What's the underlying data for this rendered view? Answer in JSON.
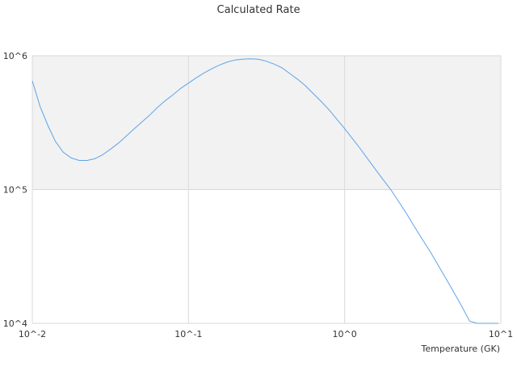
{
  "chart_data": {
    "type": "line",
    "title": "Calculated Rate",
    "xlabel": "Temperature (GK)",
    "ylabel": "",
    "x_scale": "log",
    "y_scale": "log",
    "xlim": [
      0.01,
      10
    ],
    "ylim": [
      10000,
      1000000
    ],
    "x_ticks": [
      {
        "value": 0.01,
        "label": "10^-2"
      },
      {
        "value": 0.1,
        "label": "10^-1"
      },
      {
        "value": 1,
        "label": "10^0"
      },
      {
        "value": 10,
        "label": "10^1"
      }
    ],
    "y_ticks": [
      {
        "value": 10000,
        "label": "10^4"
      },
      {
        "value": 100000,
        "label": "10^5"
      },
      {
        "value": 1000000,
        "label": "10^6"
      }
    ],
    "alternating_bands": true,
    "grid": true,
    "series_color": "#5ea3e8",
    "band_color": "#f2f2f2",
    "series": [
      {
        "x": [
          0.01,
          0.0112,
          0.0126,
          0.0141,
          0.0158,
          0.0178,
          0.02,
          0.0224,
          0.0251,
          0.0282,
          0.0316,
          0.0355,
          0.0398,
          0.0447,
          0.0501,
          0.0562,
          0.0631,
          0.0708,
          0.0794,
          0.0891,
          0.1,
          0.1122,
          0.1259,
          0.1413,
          0.1585,
          0.1778,
          0.1995,
          0.2239,
          0.2512,
          0.2818,
          0.3162,
          0.3548,
          0.3981,
          0.4467,
          0.5012,
          0.5623,
          0.631,
          0.7079,
          0.7943,
          0.8913,
          1.0,
          1.122,
          1.2589,
          1.4125,
          1.5849,
          1.7783,
          1.9953,
          2.2387,
          2.5119,
          2.8184,
          3.1623,
          3.5481,
          3.9811,
          4.4668,
          5.0119,
          5.6234,
          6.3096,
          7.0795,
          7.9433,
          8.9125,
          9.6383
        ],
        "y": [
          650000,
          420000,
          300000,
          228000,
          190000,
          172000,
          165000,
          165000,
          170000,
          182000,
          200000,
          222000,
          250000,
          283000,
          318000,
          358000,
          410000,
          460000,
          510000,
          570000,
          625000,
          685000,
          745000,
          802000,
          855000,
          900000,
          930000,
          945000,
          948000,
          940000,
          910000,
          865000,
          810000,
          735000,
          665000,
          595000,
          520000,
          455000,
          395000,
          335000,
          285000,
          240000,
          202000,
          168000,
          140000,
          117000,
          98000,
          80000,
          65000,
          52000,
          42000,
          34000,
          27000,
          21500,
          17000,
          13400,
          10400,
          10000,
          10000,
          10000,
          10000
        ]
      }
    ]
  }
}
